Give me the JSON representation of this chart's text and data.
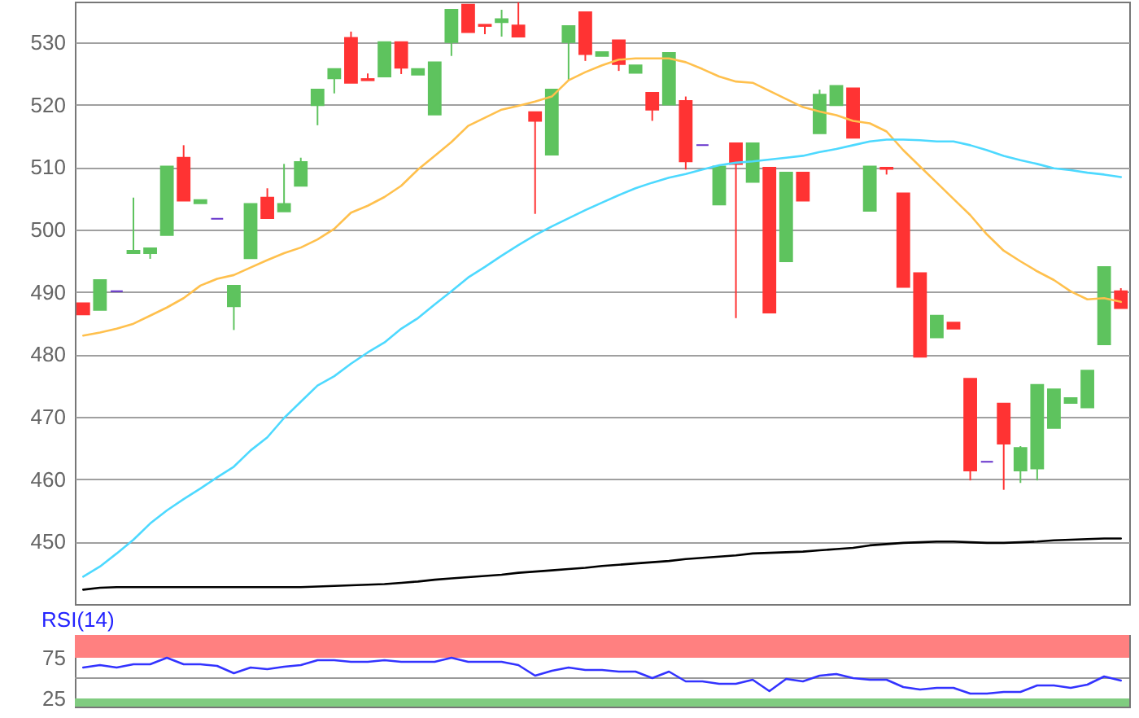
{
  "chart_data": [
    {
      "type": "candlestick",
      "categories": [
        null,
        null,
        null,
        null,
        null,
        null,
        null,
        null,
        null,
        null,
        null,
        null,
        null,
        null,
        null,
        null,
        null,
        null,
        null,
        null,
        null,
        null,
        null,
        null,
        null,
        null,
        null,
        null,
        null,
        null,
        null,
        null,
        null,
        null,
        null,
        null,
        null,
        null,
        null,
        null,
        null,
        null,
        null,
        null,
        null,
        null,
        null,
        null,
        null,
        null,
        null,
        null,
        null,
        null,
        null,
        null,
        null,
        null,
        null,
        null,
        null,
        null,
        null
      ],
      "ohlc": [
        [
          488.2,
          488.2,
          486.4,
          486.4
        ],
        [
          487.1,
          491.9,
          487.1,
          491.9
        ],
        [
          490.1,
          490.1,
          490.1,
          490.1
        ],
        [
          496.2,
          505.1,
          496.2,
          496.6
        ],
        [
          496.2,
          497.0,
          495.3,
          497.0
        ],
        [
          499.1,
          510.1,
          499.1,
          510.1
        ],
        [
          511.5,
          513.5,
          504.6,
          504.6
        ],
        [
          504.2,
          504.7,
          504.2,
          504.7
        ],
        [
          501.7,
          501.7,
          501.7,
          501.7
        ],
        [
          487.7,
          491.0,
          483.9,
          491.0
        ],
        [
          495.4,
          504.1,
          495.4,
          504.1
        ],
        [
          505.1,
          506.6,
          501.8,
          501.8
        ],
        [
          502.9,
          510.5,
          502.9,
          504.1
        ],
        [
          507.0,
          511.5,
          507.0,
          510.8
        ],
        [
          519.9,
          522.4,
          516.7,
          522.4
        ],
        [
          524.2,
          525.7,
          521.8,
          525.7
        ],
        [
          530.7,
          531.7,
          523.5,
          523.5
        ],
        [
          524.1,
          525.0,
          523.9,
          523.9
        ],
        [
          524.5,
          530.0,
          524.5,
          530.0
        ],
        [
          530.0,
          530.0,
          524.9,
          525.9
        ],
        [
          524.8,
          525.7,
          524.8,
          525.7
        ],
        [
          518.4,
          526.8,
          518.4,
          526.8
        ],
        [
          530.0,
          535.2,
          527.8,
          535.2
        ],
        [
          536.0,
          536.0,
          531.6,
          531.6
        ],
        [
          532.8,
          532.8,
          531.3,
          532.6
        ],
        [
          533.2,
          535.2,
          530.9,
          533.7
        ],
        [
          532.7,
          536.4,
          530.9,
          530.9
        ],
        [
          518.8,
          518.8,
          502.5,
          517.4
        ],
        [
          512.0,
          522.4,
          512.0,
          522.4
        ],
        [
          530.0,
          532.6,
          523.9,
          532.6
        ],
        [
          534.8,
          534.8,
          527.0,
          528.1
        ],
        [
          527.8,
          528.4,
          527.8,
          528.4
        ],
        [
          530.3,
          530.3,
          525.4,
          526.5
        ],
        [
          525.1,
          526.3,
          525.1,
          526.3
        ],
        [
          521.9,
          521.9,
          517.4,
          519.2
        ],
        [
          520.0,
          528.3,
          520.0,
          528.3
        ],
        [
          520.6,
          521.3,
          509.6,
          510.9
        ],
        [
          513.5,
          513.5,
          513.5,
          513.5
        ],
        [
          504.0,
          510.1,
          504.0,
          510.1
        ],
        [
          513.8,
          513.8,
          485.8,
          510.5
        ],
        [
          507.6,
          513.8,
          507.6,
          513.8
        ],
        [
          509.9,
          509.9,
          486.7,
          486.7
        ],
        [
          494.9,
          509.1,
          494.9,
          509.1
        ],
        [
          509.1,
          509.1,
          504.6,
          504.6
        ],
        [
          515.4,
          522.4,
          515.4,
          521.6
        ],
        [
          519.9,
          523.0,
          519.9,
          523.0
        ],
        [
          522.6,
          522.6,
          514.7,
          514.7
        ],
        [
          503.0,
          510.1,
          503.0,
          510.1
        ],
        [
          509.9,
          509.9,
          508.8,
          509.7
        ],
        [
          505.8,
          505.8,
          490.8,
          490.8
        ],
        [
          493.0,
          493.0,
          479.6,
          479.6
        ],
        [
          482.7,
          486.2,
          482.7,
          486.2
        ],
        [
          485.1,
          485.1,
          484.1,
          484.1
        ],
        [
          476.1,
          476.1,
          459.8,
          461.4
        ],
        [
          462.8,
          462.8,
          462.8,
          462.8
        ],
        [
          472.1,
          472.1,
          458.3,
          465.7
        ],
        [
          461.4,
          465.3,
          459.4,
          465.0
        ],
        [
          461.7,
          475.1,
          459.8,
          475.1
        ],
        [
          468.2,
          474.4,
          468.2,
          474.4
        ],
        [
          472.2,
          473.0,
          472.2,
          473.0
        ],
        [
          471.5,
          477.4,
          471.5,
          477.4
        ],
        [
          481.6,
          494.0,
          481.6,
          494.0
        ],
        [
          490.1,
          490.6,
          487.4,
          487.4
        ]
      ],
      "colors": [
        "#ff3333",
        "#5ec35e",
        "#6633cc",
        "#5ec35e",
        "#5ec35e",
        "#5ec35e",
        "#ff3333",
        "#5ec35e",
        "#6633cc",
        "#5ec35e",
        "#5ec35e",
        "#ff3333",
        "#5ec35e",
        "#5ec35e",
        "#5ec35e",
        "#5ec35e",
        "#ff3333",
        "#ff3333",
        "#5ec35e",
        "#ff3333",
        "#5ec35e",
        "#5ec35e",
        "#5ec35e",
        "#ff3333",
        "#ff3333",
        "#5ec35e",
        "#ff3333",
        "#ff3333",
        "#5ec35e",
        "#5ec35e",
        "#ff3333",
        "#5ec35e",
        "#ff3333",
        "#5ec35e",
        "#ff3333",
        "#5ec35e",
        "#ff3333",
        "#6633cc",
        "#5ec35e",
        "#ff3333",
        "#5ec35e",
        "#ff3333",
        "#5ec35e",
        "#ff3333",
        "#5ec35e",
        "#5ec35e",
        "#ff3333",
        "#5ec35e",
        "#ff3333",
        "#ff3333",
        "#ff3333",
        "#5ec35e",
        "#ff3333",
        "#ff3333",
        "#6633cc",
        "#ff3333",
        "#5ec35e",
        "#5ec35e",
        "#5ec35e",
        "#5ec35e",
        "#5ec35e",
        "#5ec35e",
        "#ff3333"
      ],
      "series": [
        {
          "type": "line",
          "color": "#ffc04d",
          "values": [
            483.0,
            483.5,
            484.1,
            484.9,
            486.2,
            487.5,
            489.0,
            491.0,
            492.1,
            492.7,
            493.9,
            495.1,
            496.2,
            497.1,
            498.4,
            500.1,
            502.7,
            503.8,
            505.2,
            507.0,
            509.6,
            511.8,
            514.0,
            516.6,
            517.9,
            519.2,
            519.8,
            520.5,
            521.3,
            523.9,
            525.2,
            526.3,
            527.2,
            527.4,
            527.4,
            527.4,
            526.8,
            525.7,
            524.5,
            523.7,
            523.5,
            522.2,
            520.9,
            519.6,
            518.9,
            518.3,
            517.4,
            517.0,
            515.7,
            512.7,
            510.1,
            507.5,
            504.9,
            502.3,
            499.2,
            496.6,
            494.9,
            493.3,
            491.9,
            490.1,
            488.8,
            489.0,
            488.4
          ]
        },
        {
          "type": "line",
          "color": "#4dd9ff",
          "values": [
            444.4,
            446.0,
            448.1,
            450.3,
            452.9,
            455.0,
            456.8,
            458.5,
            460.3,
            462.0,
            464.6,
            466.7,
            469.8,
            472.4,
            475.0,
            476.5,
            478.5,
            480.3,
            481.9,
            484.1,
            485.8,
            488.0,
            490.1,
            492.3,
            494.0,
            495.8,
            497.5,
            499.1,
            500.5,
            501.8,
            503.1,
            504.3,
            505.5,
            506.6,
            507.5,
            508.3,
            508.9,
            509.6,
            510.3,
            510.7,
            510.9,
            511.2,
            511.5,
            511.8,
            512.4,
            512.9,
            513.5,
            514.1,
            514.4,
            514.4,
            514.3,
            514.1,
            514.1,
            513.5,
            512.7,
            511.8,
            511.1,
            510.5,
            509.8,
            509.5,
            509.1,
            508.8,
            508.4
          ]
        },
        {
          "type": "line",
          "color": "#000000",
          "values": [
            442.3,
            442.6,
            442.7,
            442.7,
            442.7,
            442.7,
            442.7,
            442.7,
            442.7,
            442.7,
            442.7,
            442.7,
            442.7,
            442.7,
            442.8,
            442.9,
            443.0,
            443.1,
            443.2,
            443.4,
            443.6,
            443.9,
            444.1,
            444.3,
            444.5,
            444.7,
            445.0,
            445.2,
            445.4,
            445.6,
            445.8,
            446.1,
            446.3,
            446.5,
            446.7,
            446.9,
            447.2,
            447.4,
            447.6,
            447.8,
            448.1,
            448.2,
            448.3,
            448.4,
            448.6,
            448.8,
            449.0,
            449.4,
            449.6,
            449.8,
            449.9,
            450.0,
            450.0,
            449.9,
            449.8,
            449.8,
            449.9,
            450.0,
            450.2,
            450.3,
            450.4,
            450.5,
            450.5
          ]
        }
      ],
      "ylim": [
        440,
        536.5
      ],
      "yticks": [
        450,
        460,
        470,
        480,
        490,
        500,
        510,
        520,
        530
      ],
      "grid": "y",
      "tick_labels": "y"
    },
    {
      "type": "line",
      "title": "RSI(14)",
      "categories": [
        null,
        null,
        null,
        null,
        null,
        null,
        null,
        null,
        null,
        null,
        null,
        null,
        null,
        null,
        null,
        null,
        null,
        null,
        null,
        null,
        null,
        null,
        null,
        null,
        null,
        null,
        null,
        null,
        null,
        null,
        null,
        null,
        null,
        null,
        null,
        null,
        null,
        null,
        null,
        null,
        null,
        null,
        null,
        null,
        null,
        null,
        null,
        null,
        null,
        null,
        null,
        null,
        null,
        null,
        null,
        null,
        null,
        null,
        null,
        null,
        null,
        null,
        null
      ],
      "series": [
        {
          "color": "#3333ff",
          "values": [
            63,
            66,
            63,
            67,
            67,
            75,
            67,
            67,
            65,
            56,
            63,
            61,
            64,
            66,
            72,
            72,
            70,
            70,
            72,
            70,
            70,
            70,
            75,
            70,
            70,
            70,
            66,
            53,
            59,
            63,
            60,
            60,
            58,
            58,
            50,
            58,
            46,
            46,
            43,
            43,
            48,
            34,
            49,
            46,
            53,
            55,
            50,
            48,
            48,
            39,
            36,
            38,
            38,
            31,
            31,
            33,
            33,
            41,
            41,
            38,
            42,
            52,
            47
          ]
        }
      ],
      "ylim": [
        15,
        103
      ],
      "yticks": [
        25,
        75
      ],
      "bands": [
        {
          "axis": "y",
          "from": 75,
          "to": 103,
          "color": "#ff8080"
        },
        {
          "axis": "y",
          "from": 15,
          "to": 25,
          "color": "#80cc80"
        }
      ],
      "ref_lines": [
        {
          "axis": "y",
          "value": 50,
          "color": "#999999"
        }
      ],
      "tick_labels": "y"
    }
  ]
}
